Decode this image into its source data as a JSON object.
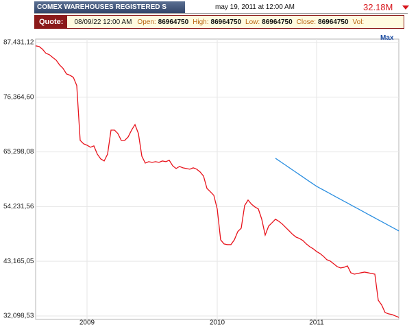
{
  "header": {
    "title": "COMEX WAREHOUSES REGISTERED S",
    "date": "may 19, 2011 at 12:00 AM",
    "last": "32.18M",
    "range_link": "Max"
  },
  "quote": {
    "label": "Quote:",
    "time": "08/09/22 12:00 AM",
    "fields": [
      {
        "name": "Open:",
        "value": 86964750
      },
      {
        "name": "High:",
        "value": 86964750
      },
      {
        "name": "Low:",
        "value": 86964750
      },
      {
        "name": "Close:",
        "value": 86964750
      },
      {
        "name": "Vol:"
      }
    ]
  },
  "chart_data": {
    "type": "line",
    "grid": true,
    "categories": [
      null,
      null,
      null,
      null,
      null,
      null,
      null,
      null,
      null,
      null,
      null,
      null,
      null,
      null,
      null,
      "2009",
      null,
      null,
      null,
      null,
      null,
      null,
      null,
      null,
      null,
      null,
      null,
      null,
      null,
      null,
      null,
      null,
      null,
      null,
      null,
      null,
      null,
      null,
      null,
      null,
      null,
      null,
      null,
      null,
      null,
      null,
      null,
      null,
      null,
      null,
      null,
      null,
      null,
      "2010",
      null,
      null,
      null,
      null,
      null,
      null,
      null,
      null,
      null,
      null,
      null,
      null,
      null,
      null,
      null,
      null,
      null,
      null,
      null,
      null,
      null,
      null,
      null,
      null,
      null,
      null,
      null,
      null,
      "2011",
      null,
      null,
      null,
      null,
      null,
      null,
      null,
      null,
      null,
      null,
      null,
      null,
      null,
      null,
      null,
      null,
      null,
      null,
      null,
      null,
      null,
      null,
      null,
      null
    ],
    "ylim": [
      31400000,
      88130000
    ],
    "yticks": [
      {
        "value": 32098530,
        "label": "32,098,53"
      },
      {
        "value": 43165050,
        "label": "43,165,05"
      },
      {
        "value": 54231560,
        "label": "54,231,56"
      },
      {
        "value": 65298080,
        "label": "65,298,08"
      },
      {
        "value": 76364600,
        "label": "76,364,60"
      },
      {
        "value": 87431120,
        "label": "87,431,12"
      }
    ],
    "series": [
      {
        "color": "#e8121b",
        "values": [
          86770000,
          86630000,
          86080000,
          85250000,
          84970000,
          84410000,
          83860000,
          82890000,
          82190000,
          81080000,
          80810000,
          80390000,
          78730000,
          67620000,
          66930000,
          66650000,
          66240000,
          66510000,
          64850000,
          63880000,
          63460000,
          64850000,
          69710000,
          69710000,
          69010000,
          67620000,
          67620000,
          68320000,
          69710000,
          70820000,
          69010000,
          64430000,
          63040000,
          63320000,
          63180000,
          63320000,
          63180000,
          63460000,
          63320000,
          63600000,
          62490000,
          61930000,
          62350000,
          62070000,
          61930000,
          61800000,
          62070000,
          61800000,
          61240000,
          60410000,
          57910000,
          57220000,
          56520000,
          53750000,
          47500000,
          46670000,
          46530000,
          46530000,
          47500000,
          49170000,
          49860000,
          54440000,
          55550000,
          54720000,
          54160000,
          53750000,
          51670000,
          48470000,
          50280000,
          50970000,
          51670000,
          51250000,
          50690000,
          50000000,
          49310000,
          48610000,
          48060000,
          47780000,
          47360000,
          46670000,
          46120000,
          45700000,
          45140000,
          44730000,
          44170000,
          43480000,
          43200000,
          42650000,
          42090000,
          41810000,
          41950000,
          42230000,
          40840000,
          40560000,
          40700000,
          40840000,
          40980000,
          40840000,
          40700000,
          40560000,
          35290000,
          34320000,
          32790000,
          32520000,
          32380000,
          32100000,
          31820000
        ]
      },
      {
        "color": "#2a8ee0",
        "values": [
          null,
          null,
          null,
          null,
          null,
          null,
          null,
          null,
          null,
          null,
          null,
          null,
          null,
          null,
          null,
          null,
          null,
          null,
          null,
          null,
          null,
          null,
          null,
          null,
          null,
          null,
          null,
          null,
          null,
          null,
          null,
          null,
          null,
          null,
          null,
          null,
          null,
          null,
          null,
          null,
          null,
          null,
          null,
          null,
          null,
          null,
          null,
          null,
          null,
          null,
          null,
          null,
          null,
          null,
          null,
          null,
          null,
          null,
          null,
          null,
          null,
          null,
          null,
          null,
          null,
          null,
          null,
          null,
          null,
          null,
          64010000,
          63540000,
          63060000,
          62590000,
          62110000,
          61640000,
          61170000,
          60690000,
          60220000,
          59740000,
          59270000,
          58800000,
          58330000,
          57950000,
          57580000,
          57200000,
          56830000,
          56450000,
          56070000,
          55700000,
          55320000,
          54950000,
          54570000,
          54190000,
          53820000,
          53440000,
          53070000,
          52690000,
          52310000,
          51940000,
          51560000,
          51190000,
          50810000,
          50430000,
          50060000,
          49680000,
          49310000
        ]
      }
    ]
  }
}
